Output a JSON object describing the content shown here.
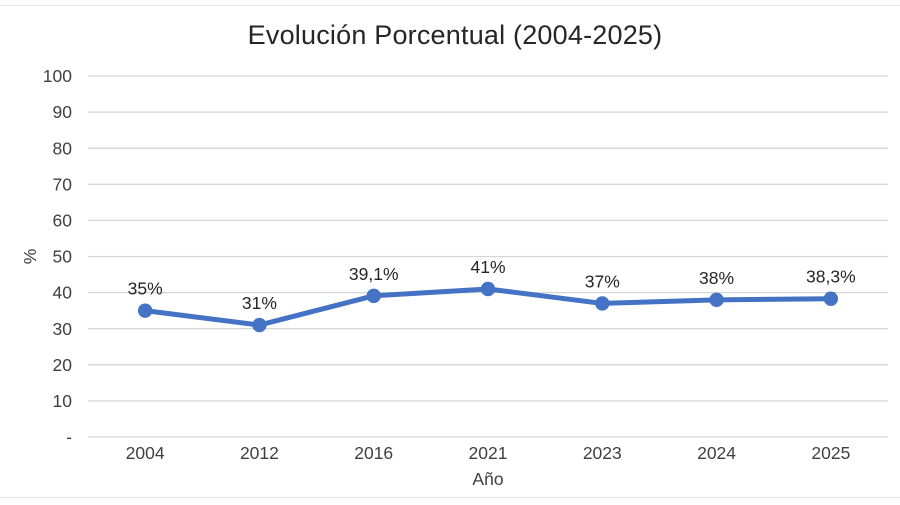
{
  "chart_data": {
    "type": "line",
    "title": "Evolución Porcentual (2004-2025)",
    "xlabel": "Año",
    "ylabel": "%",
    "categories": [
      "2004",
      "2012",
      "2016",
      "2021",
      "2023",
      "2024",
      "2025"
    ],
    "series": [
      {
        "name": "Evolución Porcentual",
        "values": [
          35,
          31,
          39.1,
          41,
          37,
          38,
          38.3
        ],
        "data_labels": [
          "35%",
          "31%",
          "39,1%",
          "41%",
          "37%",
          "38%",
          "38,3%"
        ]
      }
    ],
    "ylim": [
      0,
      100
    ],
    "y_tick_step": 10,
    "y_tick_labels": [
      "-",
      "10",
      "20",
      "30",
      "40",
      "50",
      "60",
      "70",
      "80",
      "90",
      "100"
    ],
    "grid": true,
    "legend": "none",
    "colors": {
      "line": "#4472C4",
      "marker": "#4472C4",
      "gridline": "#D6D6D6",
      "tick_text": "#404040",
      "data_label_text": "#262626",
      "title_text": "#262626"
    }
  }
}
